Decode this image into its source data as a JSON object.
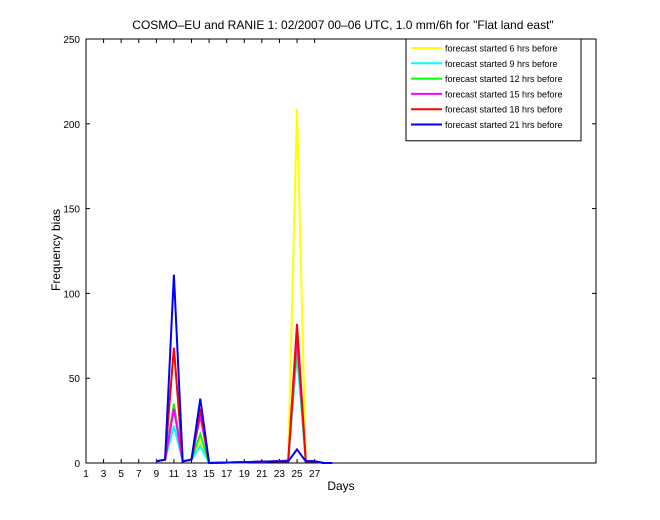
{
  "chart_data": {
    "type": "line",
    "title": "COSMO–EU and RANIE 1: 02/2007 00–06 UTC, 1.0 mm/6h for \"Flat land east\"",
    "xlabel": "Days",
    "ylabel": "Frequency bias",
    "xlim": [
      1,
      59
    ],
    "ylim": [
      0,
      250
    ],
    "xticks": [
      1,
      3,
      5,
      7,
      9,
      11,
      13,
      15,
      17,
      19,
      21,
      23,
      25,
      27
    ],
    "xtick_labels": [
      "1",
      "3",
      "5",
      "7",
      "9",
      "11",
      "13",
      "15",
      "17",
      "19",
      "21",
      "23",
      "25",
      "27"
    ],
    "yticks": [
      0,
      50,
      100,
      150,
      200,
      250
    ],
    "ytick_labels": [
      "0",
      "50",
      "100",
      "150",
      "200",
      "250"
    ],
    "grid": false,
    "legend_position": "top-right",
    "series": [
      {
        "name": "forecast started 6 hrs before",
        "color": "#ffff00",
        "x": [
          9,
          10,
          11,
          12,
          13,
          14,
          15,
          23,
          24,
          25,
          26,
          27,
          28,
          29
        ],
        "y": [
          1,
          2,
          22,
          1,
          2,
          12,
          0,
          1,
          1,
          209,
          1,
          1,
          0,
          0
        ]
      },
      {
        "name": "forecast started 9 hrs before",
        "color": "#00ffff",
        "x": [
          9,
          10,
          11,
          12,
          13,
          14,
          15,
          23,
          24,
          25,
          26,
          27,
          28,
          29
        ],
        "y": [
          1,
          2,
          22,
          1,
          2,
          10,
          0,
          1,
          2,
          64,
          1,
          1,
          0,
          0
        ]
      },
      {
        "name": "forecast started 12 hrs before",
        "color": "#00ff00",
        "x": [
          9,
          10,
          11,
          12,
          13,
          14,
          15,
          23,
          24,
          25,
          26,
          27,
          28,
          29
        ],
        "y": [
          1,
          2,
          35,
          1,
          2,
          17,
          0,
          1,
          1,
          70,
          1,
          1,
          0,
          0
        ]
      },
      {
        "name": "forecast started 15 hrs before",
        "color": "#ff00ff",
        "x": [
          9,
          10,
          11,
          12,
          13,
          14,
          15,
          23,
          24,
          25,
          26,
          27,
          28,
          29
        ],
        "y": [
          1,
          2,
          32,
          1,
          2,
          28,
          0,
          1,
          1,
          75,
          1,
          1,
          0,
          0
        ]
      },
      {
        "name": "forecast started 18 hrs before",
        "color": "#ff0000",
        "x": [
          9,
          10,
          11,
          12,
          13,
          14,
          15,
          23,
          24,
          25,
          26,
          27,
          28,
          29
        ],
        "y": [
          1,
          2,
          68,
          1,
          2,
          32,
          0,
          1,
          1,
          82,
          1,
          1,
          0,
          0
        ]
      },
      {
        "name": "forecast started 21 hrs before",
        "color": "#0000ff",
        "x": [
          9,
          10,
          11,
          12,
          13,
          14,
          15,
          23,
          24,
          25,
          26,
          27,
          28,
          29
        ],
        "y": [
          1,
          2,
          111,
          1,
          2,
          38,
          0,
          1,
          1,
          8,
          1,
          1,
          0,
          0
        ]
      }
    ]
  }
}
